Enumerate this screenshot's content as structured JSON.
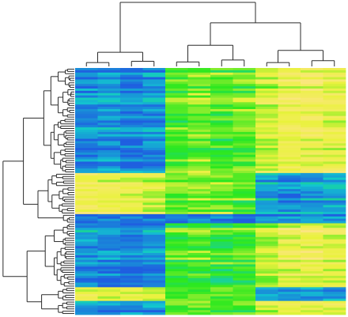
{
  "chart_data": {
    "type": "heatmap",
    "title": "",
    "xlabel": "",
    "ylabel": "",
    "colors": {
      "low": "#1f5fe0",
      "mid_low": "#12c8cf",
      "mid": "#2ae81f",
      "mid_high": "#e9f23c",
      "high": "#fbe67f",
      "dendrogram": "#2b2b2b"
    },
    "columns": 12,
    "column_clusters": [
      {
        "name": "",
        "columns": 4
      },
      {
        "name": "",
        "columns": 4
      },
      {
        "name": "",
        "columns": 4
      }
    ],
    "row_blocks": [
      {
        "rows": 46,
        "values": [
          0.1,
          0.15,
          0.08,
          0.14,
          0.55,
          0.6,
          0.55,
          0.58,
          0.72,
          0.82,
          0.85,
          0.8
        ]
      },
      {
        "rows": 18,
        "values": [
          0.82,
          0.8,
          0.78,
          0.74,
          0.58,
          0.6,
          0.6,
          0.55,
          0.18,
          0.12,
          0.16,
          0.2
        ]
      },
      {
        "rows": 4,
        "values": [
          0.1,
          0.12,
          0.1,
          0.12,
          0.1,
          0.15,
          0.12,
          0.12,
          0.15,
          0.18,
          0.2,
          0.2
        ]
      },
      {
        "rows": 28,
        "values": [
          0.15,
          0.12,
          0.1,
          0.15,
          0.55,
          0.58,
          0.52,
          0.55,
          0.7,
          0.82,
          0.85,
          0.8
        ]
      },
      {
        "rows": 6,
        "values": [
          0.82,
          0.8,
          0.8,
          0.75,
          0.58,
          0.6,
          0.6,
          0.58,
          0.2,
          0.15,
          0.18,
          0.18
        ]
      },
      {
        "rows": 6,
        "values": [
          0.15,
          0.12,
          0.18,
          0.18,
          0.58,
          0.62,
          0.55,
          0.58,
          0.75,
          0.82,
          0.8,
          0.82
        ]
      }
    ],
    "legend": "none",
    "grid": false
  }
}
